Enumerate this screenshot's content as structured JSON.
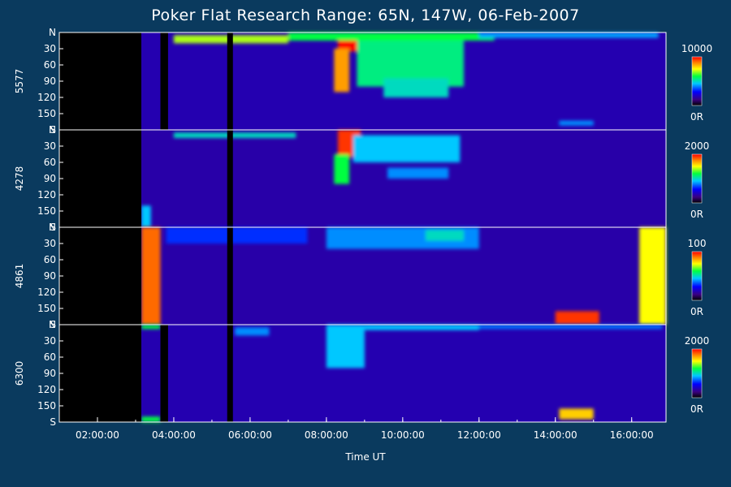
{
  "chart_data": {
    "type": "heatmap",
    "title": "Poker Flat Research Range: 65N, 147W, 06-Feb-2007",
    "xlabel": "Time UT",
    "x_ticks": [
      "02:00:00",
      "04:00:00",
      "06:00:00",
      "08:00:00",
      "10:00:00",
      "12:00:00",
      "14:00:00",
      "16:00:00"
    ],
    "x_range_hours": [
      1.0,
      16.9
    ],
    "y_ticks": [
      "N",
      "30",
      "60",
      "90",
      "120",
      "150",
      "S"
    ],
    "y_range_deg": [
      0,
      180
    ],
    "colormap": "rainbow",
    "panels": [
      {
        "name": "5577",
        "cbar_max": "10000",
        "cbar_min": "0R",
        "background_level": 0.18,
        "no_data_hours": [
          [
            1.0,
            3.15
          ],
          [
            3.65,
            3.85
          ],
          [
            5.4,
            5.55
          ]
        ],
        "features": [
          {
            "t": [
              8.3,
              9.0
            ],
            "y": [
              0,
              35
            ],
            "level": 1.0
          },
          {
            "t": [
              8.2,
              8.6
            ],
            "y": [
              30,
              110
            ],
            "level": 0.85
          },
          {
            "t": [
              8.8,
              11.6
            ],
            "y": [
              15,
              100
            ],
            "level": 0.55
          },
          {
            "t": [
              9.5,
              11.2
            ],
            "y": [
              85,
              120
            ],
            "level": 0.5
          },
          {
            "t": [
              4.0,
              7.0
            ],
            "y": [
              5,
              20
            ],
            "level": 0.7
          },
          {
            "t": [
              7.0,
              12.4
            ],
            "y": [
              0,
              15
            ],
            "level": 0.6
          },
          {
            "t": [
              12.0,
              16.7
            ],
            "y": [
              0,
              10
            ],
            "level": 0.42
          },
          {
            "t": [
              14.1,
              15.0
            ],
            "y": [
              163,
              172
            ],
            "level": 0.4
          }
        ]
      },
      {
        "name": "4278",
        "cbar_max": "2000",
        "cbar_min": "0R",
        "background_level": 0.17,
        "no_data_hours": [
          [
            1.0,
            3.15
          ],
          [
            5.4,
            5.55
          ]
        ],
        "features": [
          {
            "t": [
              8.3,
              8.9
            ],
            "y": [
              0,
              50
            ],
            "level": 0.95
          },
          {
            "t": [
              8.2,
              8.6
            ],
            "y": [
              45,
              100
            ],
            "level": 0.6
          },
          {
            "t": [
              8.7,
              11.5
            ],
            "y": [
              10,
              60
            ],
            "level": 0.45
          },
          {
            "t": [
              9.6,
              11.2
            ],
            "y": [
              70,
              90
            ],
            "level": 0.4
          },
          {
            "t": [
              4.0,
              7.2
            ],
            "y": [
              5,
              15
            ],
            "level": 0.5
          },
          {
            "t": [
              3.15,
              3.4
            ],
            "y": [
              140,
              180
            ],
            "level": 0.45
          }
        ]
      },
      {
        "name": "4861",
        "cbar_max": "100",
        "cbar_min": "0R",
        "background_level": 0.17,
        "no_data_hours": [
          [
            1.0,
            3.15
          ],
          [
            5.4,
            5.55
          ]
        ],
        "features": [
          {
            "t": [
              3.15,
              3.65
            ],
            "y": [
              0,
              180
            ],
            "level": 0.9
          },
          {
            "t": [
              8.0,
              12.0
            ],
            "y": [
              0,
              40
            ],
            "level": 0.4
          },
          {
            "t": [
              10.6,
              11.6
            ],
            "y": [
              5,
              25
            ],
            "level": 0.5
          },
          {
            "t": [
              16.2,
              16.9
            ],
            "y": [
              0,
              180
            ],
            "level": 0.75
          },
          {
            "t": [
              14.0,
              15.15
            ],
            "y": [
              155,
              180
            ],
            "level": 0.95
          },
          {
            "t": [
              3.8,
              7.5
            ],
            "y": [
              0,
              30
            ],
            "level": 0.32
          }
        ]
      },
      {
        "name": "6300",
        "cbar_max": "2000",
        "cbar_min": "0R",
        "background_level": 0.18,
        "no_data_hours": [
          [
            1.0,
            3.15
          ],
          [
            3.65,
            3.85
          ],
          [
            5.4,
            5.55
          ]
        ],
        "features": [
          {
            "t": [
              3.15,
              3.65
            ],
            "y": [
              0,
              8
            ],
            "level": 0.6
          },
          {
            "t": [
              3.15,
              3.65
            ],
            "y": [
              170,
              180
            ],
            "level": 0.6
          },
          {
            "t": [
              5.6,
              6.5
            ],
            "y": [
              5,
              20
            ],
            "level": 0.4
          },
          {
            "t": [
              8.0,
              9.0
            ],
            "y": [
              0,
              80
            ],
            "level": 0.45
          },
          {
            "t": [
              9.0,
              12.0
            ],
            "y": [
              0,
              10
            ],
            "level": 0.45
          },
          {
            "t": [
              12.0,
              16.8
            ],
            "y": [
              0,
              8
            ],
            "level": 0.38
          },
          {
            "t": [
              14.1,
              15.0
            ],
            "y": [
              155,
              175
            ],
            "level": 0.8
          }
        ]
      }
    ]
  }
}
